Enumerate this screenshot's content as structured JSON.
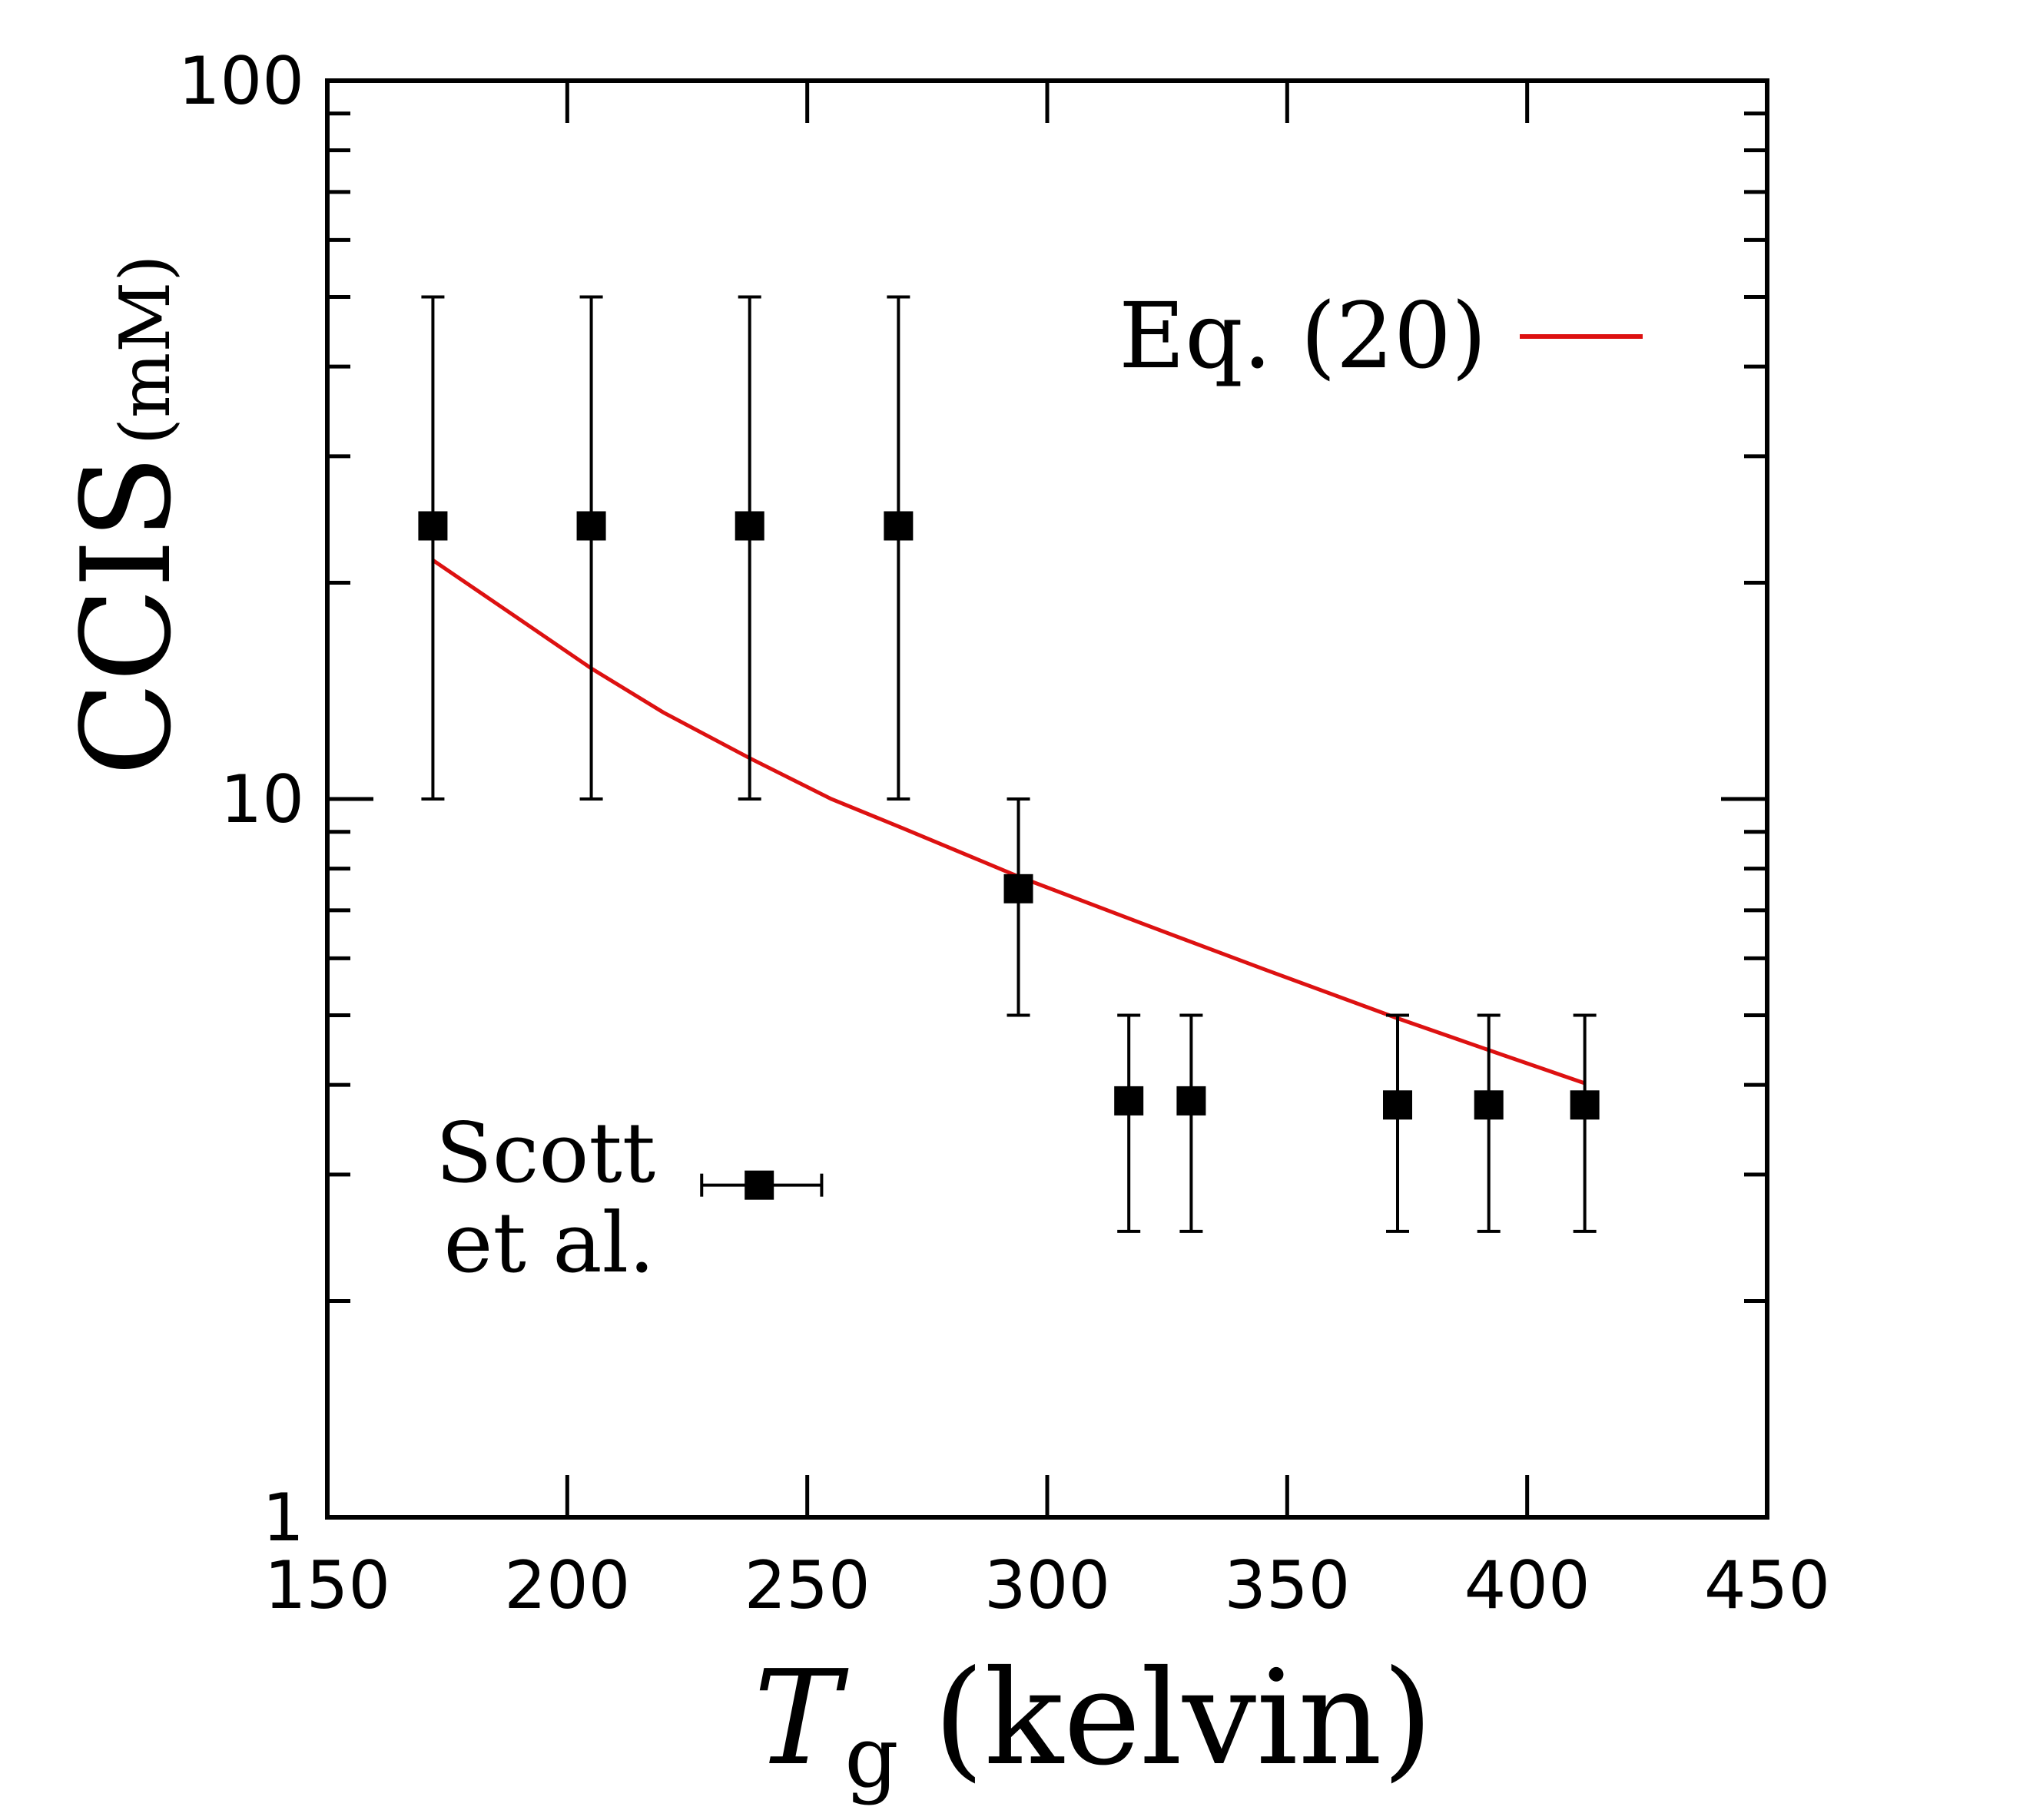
{
  "chart_data": {
    "type": "scatter",
    "xlabel": {
      "symbol": "T",
      "subscript": "g",
      "text": "(kelvin)"
    },
    "ylabel": {
      "main": "CCIS",
      "unit": "(mM)"
    },
    "xlim": [
      150,
      450
    ],
    "ylim": [
      1,
      100
    ],
    "yscale": "log",
    "grid": false,
    "x_ticks": [
      150,
      200,
      250,
      300,
      350,
      400,
      450
    ],
    "x_tick_labels": [
      "150",
      "200",
      "250",
      "300",
      "350",
      "400",
      "450"
    ],
    "y_ticks": [
      1,
      10,
      100
    ],
    "y_tick_labels": [
      "1",
      "10",
      "100"
    ],
    "legend": {
      "position": "top-right",
      "label": "Eq. (20)",
      "color": "#dd1111"
    },
    "series": [
      {
        "name": "",
        "kind": "points-with-errorbars",
        "marker": "square",
        "color": "#000000",
        "x": [
          172,
          205,
          238,
          269,
          294,
          317,
          330,
          373,
          392,
          412
        ],
        "y": [
          24,
          24,
          24,
          24,
          7.5,
          3.8,
          3.8,
          3.75,
          3.75,
          3.75
        ],
        "y_low": [
          10,
          10,
          10,
          10,
          5,
          2.5,
          2.5,
          2.5,
          2.5,
          2.5
        ],
        "y_high": [
          50,
          50,
          50,
          50,
          10,
          5,
          5,
          5,
          5,
          5
        ]
      },
      {
        "name": "Eq. (20)",
        "kind": "line",
        "color": "#dd1111",
        "x": [
          172,
          190,
          205,
          220,
          238,
          255,
          270,
          294,
          320,
          345,
          373,
          395,
          412
        ],
        "y": [
          21.5,
          17.8,
          15.2,
          13.2,
          11.4,
          10.0,
          9.1,
          7.8,
          6.7,
          5.8,
          4.95,
          4.4,
          4.02
        ]
      },
      {
        "name": "",
        "kind": "point-with-x-errorbar",
        "marker": "square",
        "color": "#000000",
        "label_lines": [
          "Scott",
          "et al."
        ],
        "x": [
          240
        ],
        "y": [
          2.9
        ],
        "x_low": [
          228
        ],
        "x_high": [
          253
        ]
      }
    ]
  }
}
